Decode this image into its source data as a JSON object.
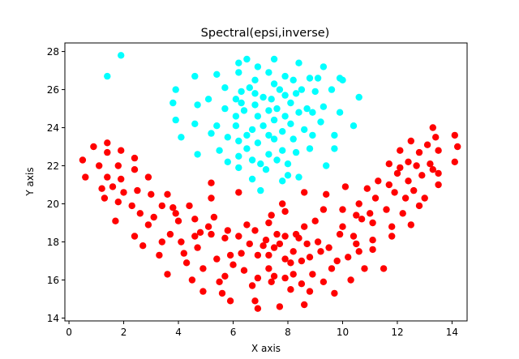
{
  "chart_data": {
    "type": "scatter",
    "title": "Spectral(epsi,inverse)",
    "xlabel": "X axis",
    "ylabel": "Y axis",
    "xlim": [
      -0.15,
      14.55
    ],
    "ylim": [
      13.85,
      28.45
    ],
    "xticks": [
      0,
      2,
      4,
      6,
      8,
      10,
      12,
      14
    ],
    "yticks": [
      14,
      16,
      18,
      20,
      22,
      24,
      26,
      28
    ],
    "grid": false,
    "series": [
      {
        "color": "#00ffff",
        "points": [
          [
            1.9,
            27.8
          ],
          [
            1.4,
            26.7
          ],
          [
            3.8,
            25.3
          ],
          [
            3.9,
            26.0
          ],
          [
            3.9,
            24.4
          ],
          [
            4.1,
            23.5
          ],
          [
            4.6,
            26.7
          ],
          [
            4.6,
            24.2
          ],
          [
            4.7,
            25.2
          ],
          [
            4.7,
            22.6
          ],
          [
            5.1,
            25.5
          ],
          [
            5.2,
            23.7
          ],
          [
            5.4,
            26.8
          ],
          [
            5.4,
            24.1
          ],
          [
            5.5,
            22.8
          ],
          [
            5.7,
            26.1
          ],
          [
            5.7,
            25.0
          ],
          [
            5.8,
            23.5
          ],
          [
            5.8,
            22.2
          ],
          [
            6.1,
            25.5
          ],
          [
            6.1,
            24.6
          ],
          [
            6.1,
            24.1
          ],
          [
            6.2,
            26.9
          ],
          [
            6.2,
            23.3
          ],
          [
            6.2,
            22.5
          ],
          [
            6.2,
            21.9
          ],
          [
            6.2,
            27.4
          ],
          [
            6.3,
            25.3
          ],
          [
            6.3,
            25.9
          ],
          [
            6.4,
            24.9
          ],
          [
            6.5,
            23.6
          ],
          [
            6.5,
            22.9
          ],
          [
            6.5,
            27.6
          ],
          [
            6.6,
            26.1
          ],
          [
            6.7,
            23.9
          ],
          [
            6.7,
            22.3
          ],
          [
            6.7,
            21.3
          ],
          [
            6.8,
            26.5
          ],
          [
            6.8,
            25.8
          ],
          [
            6.8,
            25.2
          ],
          [
            6.9,
            24.6
          ],
          [
            6.9,
            23.2
          ],
          [
            6.9,
            27.2
          ],
          [
            7.0,
            20.7
          ],
          [
            7.0,
            22.1
          ],
          [
            7.1,
            25.6
          ],
          [
            7.1,
            24.1
          ],
          [
            7.2,
            21.8
          ],
          [
            7.3,
            26.9
          ],
          [
            7.3,
            24.9
          ],
          [
            7.3,
            23.6
          ],
          [
            7.3,
            22.6
          ],
          [
            7.4,
            25.5
          ],
          [
            7.5,
            26.3
          ],
          [
            7.5,
            27.6
          ],
          [
            7.5,
            24.4
          ],
          [
            7.5,
            23.4
          ],
          [
            7.6,
            22.3
          ],
          [
            7.6,
            25.0
          ],
          [
            7.7,
            26.0
          ],
          [
            7.8,
            23.8
          ],
          [
            7.8,
            22.8
          ],
          [
            7.8,
            21.2
          ],
          [
            7.9,
            25.7
          ],
          [
            7.9,
            24.6
          ],
          [
            7.9,
            26.7
          ],
          [
            8.0,
            22.1
          ],
          [
            8.0,
            21.5
          ],
          [
            8.1,
            25.3
          ],
          [
            8.1,
            24.2
          ],
          [
            8.2,
            26.5
          ],
          [
            8.2,
            23.4
          ],
          [
            8.3,
            22.7
          ],
          [
            8.3,
            25.8
          ],
          [
            8.4,
            24.8
          ],
          [
            8.4,
            27.4
          ],
          [
            8.4,
            21.4
          ],
          [
            8.5,
            26.0
          ],
          [
            8.6,
            23.9
          ],
          [
            8.7,
            25.0
          ],
          [
            8.8,
            26.6
          ],
          [
            8.8,
            22.9
          ],
          [
            8.9,
            24.8
          ],
          [
            8.9,
            23.6
          ],
          [
            9.0,
            25.9
          ],
          [
            9.1,
            26.6
          ],
          [
            9.2,
            24.3
          ],
          [
            9.3,
            27.2
          ],
          [
            9.3,
            25.1
          ],
          [
            9.4,
            22.0
          ],
          [
            9.6,
            26.0
          ],
          [
            9.7,
            23.6
          ],
          [
            9.7,
            22.9
          ],
          [
            9.9,
            26.6
          ],
          [
            9.9,
            24.8
          ],
          [
            10.0,
            26.5
          ],
          [
            10.4,
            24.1
          ],
          [
            10.6,
            25.6
          ]
        ]
      },
      {
        "color": "#ff0000",
        "points": [
          [
            0.5,
            22.3
          ],
          [
            0.6,
            21.4
          ],
          [
            0.9,
            23.0
          ],
          [
            1.1,
            22.0
          ],
          [
            1.2,
            20.8
          ],
          [
            1.3,
            20.3
          ],
          [
            1.4,
            22.7
          ],
          [
            1.4,
            23.2
          ],
          [
            1.4,
            21.4
          ],
          [
            1.6,
            20.9
          ],
          [
            1.7,
            19.1
          ],
          [
            1.8,
            22.0
          ],
          [
            1.8,
            20.1
          ],
          [
            1.9,
            21.3
          ],
          [
            1.9,
            22.8
          ],
          [
            2.0,
            20.6
          ],
          [
            2.3,
            19.9
          ],
          [
            2.4,
            22.4
          ],
          [
            2.4,
            21.8
          ],
          [
            2.4,
            18.3
          ],
          [
            2.5,
            20.7
          ],
          [
            2.6,
            19.5
          ],
          [
            2.7,
            17.8
          ],
          [
            2.9,
            21.4
          ],
          [
            2.9,
            18.9
          ],
          [
            3.0,
            20.5
          ],
          [
            3.1,
            19.3
          ],
          [
            3.3,
            17.3
          ],
          [
            3.4,
            19.9
          ],
          [
            3.4,
            18.0
          ],
          [
            3.6,
            20.5
          ],
          [
            3.6,
            16.3
          ],
          [
            3.7,
            18.4
          ],
          [
            3.8,
            19.8
          ],
          [
            3.9,
            19.5
          ],
          [
            4.0,
            19.1
          ],
          [
            4.1,
            18.0
          ],
          [
            4.2,
            17.4
          ],
          [
            4.3,
            16.9
          ],
          [
            4.4,
            19.9
          ],
          [
            4.5,
            16.0
          ],
          [
            4.6,
            18.3
          ],
          [
            4.6,
            19.2
          ],
          [
            4.7,
            17.7
          ],
          [
            4.8,
            18.5
          ],
          [
            4.9,
            15.4
          ],
          [
            4.9,
            16.6
          ],
          [
            5.1,
            18.8
          ],
          [
            5.2,
            21.1
          ],
          [
            5.2,
            20.3
          ],
          [
            5.2,
            18.4
          ],
          [
            5.3,
            19.3
          ],
          [
            5.4,
            17.1
          ],
          [
            5.5,
            15.9
          ],
          [
            5.6,
            15.3
          ],
          [
            5.7,
            18.2
          ],
          [
            5.7,
            16.2
          ],
          [
            5.8,
            18.6
          ],
          [
            5.9,
            14.9
          ],
          [
            5.9,
            17.3
          ],
          [
            6.0,
            16.8
          ],
          [
            6.2,
            20.6
          ],
          [
            6.2,
            18.3
          ],
          [
            6.3,
            17.4
          ],
          [
            6.4,
            16.5
          ],
          [
            6.5,
            18.9
          ],
          [
            6.6,
            17.9
          ],
          [
            6.7,
            15.7
          ],
          [
            6.8,
            14.9
          ],
          [
            6.8,
            18.6
          ],
          [
            6.9,
            17.3
          ],
          [
            6.9,
            16.1
          ],
          [
            6.9,
            14.5
          ],
          [
            7.1,
            17.8
          ],
          [
            7.2,
            18.1
          ],
          [
            7.3,
            17.3
          ],
          [
            7.3,
            16.6
          ],
          [
            7.3,
            19.0
          ],
          [
            7.4,
            15.9
          ],
          [
            7.4,
            19.4
          ],
          [
            7.5,
            16.2
          ],
          [
            7.5,
            17.7
          ],
          [
            7.6,
            18.4
          ],
          [
            7.7,
            14.6
          ],
          [
            7.7,
            17.9
          ],
          [
            7.8,
            20.0
          ],
          [
            7.9,
            19.6
          ],
          [
            7.9,
            18.3
          ],
          [
            7.9,
            17.1
          ],
          [
            7.9,
            16.1
          ],
          [
            8.1,
            16.9
          ],
          [
            8.1,
            15.5
          ],
          [
            8.2,
            17.5
          ],
          [
            8.2,
            16.3
          ],
          [
            8.3,
            18.4
          ],
          [
            8.4,
            18.2
          ],
          [
            8.5,
            15.8
          ],
          [
            8.5,
            17.0
          ],
          [
            8.6,
            18.8
          ],
          [
            8.6,
            20.6
          ],
          [
            8.6,
            14.7
          ],
          [
            8.7,
            17.9
          ],
          [
            8.8,
            15.4
          ],
          [
            8.8,
            17.2
          ],
          [
            8.9,
            16.3
          ],
          [
            9.0,
            19.1
          ],
          [
            9.1,
            18.0
          ],
          [
            9.2,
            17.5
          ],
          [
            9.3,
            19.7
          ],
          [
            9.3,
            15.9
          ],
          [
            9.4,
            20.5
          ],
          [
            9.5,
            17.7
          ],
          [
            9.6,
            16.6
          ],
          [
            9.7,
            15.3
          ],
          [
            9.8,
            17.0
          ],
          [
            9.9,
            18.4
          ],
          [
            10.0,
            18.8
          ],
          [
            10.0,
            19.7
          ],
          [
            10.1,
            20.9
          ],
          [
            10.2,
            17.2
          ],
          [
            10.3,
            16.0
          ],
          [
            10.4,
            18.3
          ],
          [
            10.5,
            17.9
          ],
          [
            10.5,
            19.4
          ],
          [
            10.6,
            20.0
          ],
          [
            10.6,
            17.5
          ],
          [
            10.7,
            19.2
          ],
          [
            10.8,
            16.6
          ],
          [
            10.9,
            20.8
          ],
          [
            11.0,
            19.5
          ],
          [
            11.1,
            18.1
          ],
          [
            11.1,
            17.6
          ],
          [
            11.1,
            19.0
          ],
          [
            11.2,
            20.3
          ],
          [
            11.3,
            21.2
          ],
          [
            11.5,
            16.6
          ],
          [
            11.6,
            19.7
          ],
          [
            11.7,
            22.1
          ],
          [
            11.7,
            21.0
          ],
          [
            11.8,
            18.8
          ],
          [
            11.8,
            18.3
          ],
          [
            11.9,
            20.6
          ],
          [
            12.0,
            21.6
          ],
          [
            12.1,
            21.9
          ],
          [
            12.1,
            22.8
          ],
          [
            12.2,
            19.5
          ],
          [
            12.3,
            20.3
          ],
          [
            12.4,
            22.2
          ],
          [
            12.4,
            21.2
          ],
          [
            12.5,
            18.9
          ],
          [
            12.5,
            23.3
          ],
          [
            12.6,
            20.7
          ],
          [
            12.7,
            22.0
          ],
          [
            12.8,
            19.9
          ],
          [
            12.8,
            22.7
          ],
          [
            12.9,
            21.5
          ],
          [
            13.0,
            20.3
          ],
          [
            13.1,
            23.1
          ],
          [
            13.2,
            22.1
          ],
          [
            13.3,
            24.0
          ],
          [
            13.3,
            21.8
          ],
          [
            13.4,
            23.5
          ],
          [
            13.5,
            22.8
          ],
          [
            13.5,
            21.6
          ],
          [
            13.5,
            21.0
          ],
          [
            14.1,
            22.2
          ],
          [
            14.1,
            23.6
          ],
          [
            14.2,
            23.0
          ]
        ]
      }
    ]
  }
}
